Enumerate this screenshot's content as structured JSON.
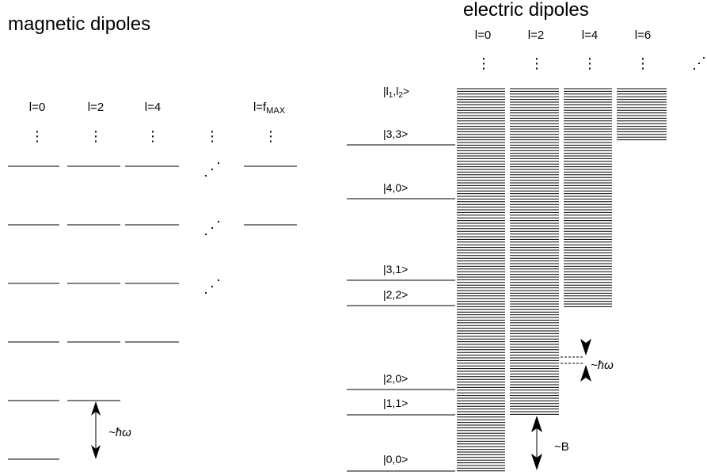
{
  "magnetic": {
    "title": "magnetic dipoles",
    "columns": [
      "l=0",
      "l=2",
      "l=4"
    ],
    "last_column": "l=f",
    "last_column_sub": "MAX",
    "hbar_omega": "~ħω"
  },
  "electric": {
    "title": "electric dipoles",
    "columns": [
      "l=0",
      "l=2",
      "l=4",
      "l=6"
    ],
    "state_first": "|l",
    "state_first_sub1": "1",
    "state_first_mid": ",l",
    "state_first_sub2": "2",
    "state_first_end": ">",
    "states": [
      "|3,3>",
      "|4,0>",
      "|3,1>",
      "|2,2>",
      "|2,0>",
      "|1,1>",
      "|0,0>"
    ],
    "hbar_omega": "~ħω",
    "b_label": "~B"
  }
}
